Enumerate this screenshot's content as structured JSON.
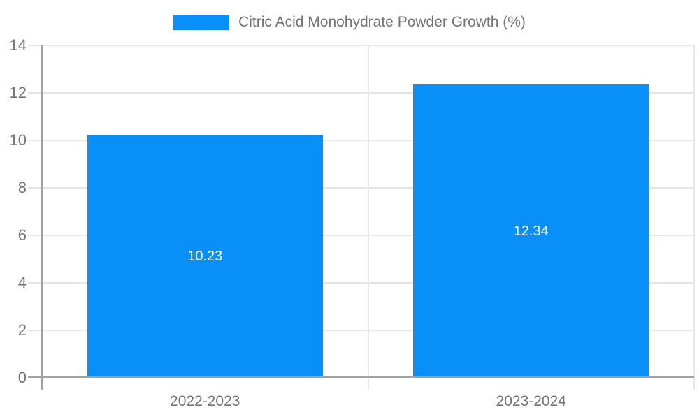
{
  "chart_data": {
    "type": "bar",
    "title": "Citric Acid Monohydrate Powder Growth (%)",
    "legend_entries": [
      "Citric Acid Monohydrate Powder Growth (%)"
    ],
    "legend_position": "top-center",
    "categories": [
      "2022-2023",
      "2023-2024"
    ],
    "values": [
      10.23,
      12.34
    ],
    "value_labels": [
      "10.23",
      "12.34"
    ],
    "xlabel": "",
    "ylabel": "",
    "ylim": [
      0,
      14
    ],
    "yticks": [
      0,
      2,
      4,
      6,
      8,
      10,
      12,
      14
    ],
    "grid": true,
    "colors": {
      "bar": "#0890f8",
      "axis_text": "#757575",
      "value_text": "#ffffff",
      "gridline": "#e6e6e6",
      "category_divider": "#e8e8e8",
      "axis_line": "#a2a2a2",
      "background": "#ffffff"
    }
  }
}
